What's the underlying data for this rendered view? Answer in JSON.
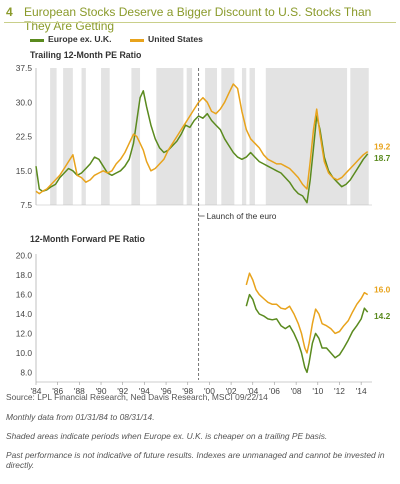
{
  "header": {
    "figure_number": "4",
    "title": "European Stocks Deserve a Bigger Discount to U.S. Stocks Than They Are Getting"
  },
  "colors": {
    "europe": "#5a8a1e",
    "us": "#e8a31c",
    "shade": "#e3e3e3",
    "accent": "#8a9a2a"
  },
  "chart_data": [
    {
      "type": "line",
      "title": "Trailing 12-Month PE Ratio",
      "ylim": [
        7.5,
        37.5
      ],
      "yticks": [
        "37.5",
        "30.0",
        "22.5",
        "15.0",
        "7.5"
      ],
      "shaded_periods": [
        [
          1985.3,
          1985.9
        ],
        [
          1986.5,
          1987.4
        ],
        [
          1988.2,
          1988.6
        ],
        [
          1990.0,
          1990.8
        ],
        [
          1992.8,
          1993.6
        ],
        [
          1995.1,
          1997.6
        ],
        [
          1997.9,
          1998.4
        ],
        [
          1999.6,
          2000.7
        ],
        [
          2001.1,
          2002.3
        ],
        [
          2003.0,
          2003.4
        ],
        [
          2003.7,
          2004.2
        ],
        [
          2005.2,
          2012.7
        ],
        [
          2013.0,
          2014.7
        ]
      ],
      "series": [
        {
          "name": "Europe ex. U.K.",
          "end_label": "18.7",
          "x": [
            1984.0,
            1984.3,
            1984.6,
            1985.0,
            1985.4,
            1985.8,
            1986.2,
            1986.6,
            1987.0,
            1987.4,
            1987.8,
            1988.2,
            1988.6,
            1989.0,
            1989.4,
            1989.8,
            1990.2,
            1990.6,
            1991.0,
            1991.4,
            1991.8,
            1992.2,
            1992.6,
            1993.0,
            1993.3,
            1993.6,
            1993.9,
            1994.2,
            1994.6,
            1995.0,
            1995.4,
            1995.8,
            1996.2,
            1996.6,
            1997.0,
            1997.4,
            1997.8,
            1998.2,
            1998.6,
            1999.0,
            1999.4,
            1999.8,
            2000.2,
            2000.6,
            2001.0,
            2001.4,
            2001.8,
            2002.2,
            2002.6,
            2003.0,
            2003.4,
            2003.8,
            2004.2,
            2004.6,
            2005.0,
            2005.4,
            2005.8,
            2006.2,
            2006.6,
            2007.0,
            2007.4,
            2007.8,
            2008.2,
            2008.6,
            2009.0,
            2009.3,
            2009.6,
            2009.9,
            2010.2,
            2010.6,
            2011.0,
            2011.4,
            2011.8,
            2012.2,
            2012.6,
            2013.0,
            2013.4,
            2013.8,
            2014.2,
            2014.6
          ],
          "values": [
            16,
            11,
            10.5,
            10.8,
            11.5,
            12,
            13.5,
            14.5,
            15.5,
            15,
            14,
            14.5,
            15.5,
            16.5,
            18,
            17.5,
            16,
            14.5,
            14,
            14.5,
            15,
            16,
            17.5,
            21,
            26,
            31,
            32.5,
            29,
            25,
            22,
            20,
            19,
            19.5,
            20.5,
            21.5,
            23,
            25,
            24.5,
            26,
            27,
            26.5,
            27.5,
            26,
            25,
            24,
            22,
            20.5,
            19,
            18,
            17.5,
            18,
            19,
            18,
            17,
            16.5,
            16,
            15.5,
            15,
            14.5,
            13.5,
            12.5,
            11,
            10,
            9.5,
            8,
            13,
            20,
            27,
            24,
            18,
            15,
            13.5,
            12.5,
            11.5,
            12,
            13,
            14.5,
            16,
            17.5,
            18.7
          ]
        },
        {
          "name": "United States",
          "end_label": "19.2",
          "x": [
            1984.0,
            1984.3,
            1984.6,
            1985.0,
            1985.4,
            1985.8,
            1986.2,
            1986.6,
            1987.0,
            1987.4,
            1987.8,
            1988.2,
            1988.6,
            1989.0,
            1989.4,
            1989.8,
            1990.2,
            1990.6,
            1991.0,
            1991.4,
            1991.8,
            1992.2,
            1992.6,
            1993.0,
            1993.3,
            1993.6,
            1993.9,
            1994.2,
            1994.6,
            1995.0,
            1995.4,
            1995.8,
            1996.2,
            1996.6,
            1997.0,
            1997.4,
            1997.8,
            1998.2,
            1998.6,
            1999.0,
            1999.4,
            1999.8,
            2000.2,
            2000.6,
            2001.0,
            2001.4,
            2001.8,
            2002.2,
            2002.6,
            2003.0,
            2003.4,
            2003.8,
            2004.2,
            2004.6,
            2005.0,
            2005.4,
            2005.8,
            2006.2,
            2006.6,
            2007.0,
            2007.4,
            2007.8,
            2008.2,
            2008.6,
            2009.0,
            2009.3,
            2009.6,
            2009.9,
            2010.2,
            2010.6,
            2011.0,
            2011.4,
            2011.8,
            2012.2,
            2012.6,
            2013.0,
            2013.4,
            2013.8,
            2014.2,
            2014.6
          ],
          "values": [
            10.5,
            10,
            10.5,
            11,
            12,
            13,
            14,
            15.5,
            17,
            18.5,
            14,
            13.5,
            12.5,
            13,
            14,
            14.5,
            15,
            14.5,
            15,
            16.5,
            17.5,
            19,
            21,
            23,
            22.5,
            21,
            19.5,
            17,
            15,
            15.5,
            16.5,
            17.5,
            19.5,
            21,
            22.5,
            24,
            25.5,
            27,
            28.5,
            30,
            31,
            30,
            28,
            27.5,
            28.5,
            30,
            32,
            34,
            33,
            28,
            24,
            22,
            21,
            20,
            18.5,
            17.5,
            17,
            16.5,
            16.5,
            16,
            15.5,
            14.5,
            13.5,
            12,
            11,
            17,
            24,
            28.5,
            23,
            17,
            14.5,
            13.5,
            13,
            13.5,
            14.5,
            15.5,
            16.5,
            17.5,
            18.5,
            19.2
          ]
        }
      ],
      "annotation": "Launch of the euro",
      "annotation_x": 1999.0
    },
    {
      "type": "line",
      "title": "12-Month Forward PE Ratio",
      "ylim": [
        7.0,
        21.0
      ],
      "yticks": [
        "20.0",
        "18.0",
        "16.0",
        "14.0",
        "12.0",
        "10.0",
        "8.0"
      ],
      "xticks": [
        "'84",
        "'86",
        "'88",
        "'90",
        "'92",
        "'94",
        "'96",
        "'98",
        "'00",
        "'02",
        "'04",
        "'06",
        "'08",
        "'10",
        "'12",
        "'14"
      ],
      "xlim": [
        1984,
        2015
      ],
      "series": [
        {
          "name": "Europe ex. U.K.",
          "end_label": "14.2",
          "x": [
            2003.4,
            2003.7,
            2004.0,
            2004.3,
            2004.6,
            2005.0,
            2005.4,
            2005.8,
            2006.2,
            2006.6,
            2007.0,
            2007.4,
            2007.8,
            2008.2,
            2008.5,
            2008.8,
            2009.0,
            2009.2,
            2009.5,
            2009.8,
            2010.1,
            2010.4,
            2010.8,
            2011.2,
            2011.6,
            2012.0,
            2012.4,
            2012.8,
            2013.2,
            2013.6,
            2014.0,
            2014.3,
            2014.6
          ],
          "values": [
            14.8,
            16,
            15.5,
            14.5,
            14,
            13.8,
            13.5,
            13.4,
            13.5,
            12.8,
            12.5,
            12.8,
            12,
            11,
            10,
            8.5,
            8,
            9,
            11,
            12,
            11.5,
            10.5,
            10.5,
            10,
            9.5,
            9.8,
            10.5,
            11.3,
            12.2,
            12.8,
            13.5,
            14.6,
            14.2
          ]
        },
        {
          "name": "United States",
          "end_label": "16.0",
          "x": [
            2003.4,
            2003.7,
            2004.0,
            2004.3,
            2004.6,
            2005.0,
            2005.4,
            2005.8,
            2006.2,
            2006.6,
            2007.0,
            2007.4,
            2007.8,
            2008.2,
            2008.5,
            2008.8,
            2009.0,
            2009.2,
            2009.5,
            2009.8,
            2010.1,
            2010.4,
            2010.8,
            2011.2,
            2011.6,
            2012.0,
            2012.4,
            2012.8,
            2013.2,
            2013.6,
            2014.0,
            2014.3,
            2014.6
          ],
          "values": [
            17,
            18.2,
            17.5,
            16.5,
            16,
            15.6,
            15.2,
            15,
            15,
            14.6,
            14.5,
            14.8,
            14,
            13,
            12,
            10.5,
            10,
            11,
            13,
            14.5,
            14,
            13,
            12.8,
            12.5,
            12,
            12.2,
            12.8,
            13.3,
            14.2,
            15,
            15.6,
            16.2,
            16.0
          ]
        }
      ]
    }
  ],
  "legend": {
    "europe": "Europe ex. U.K.",
    "us": "United States"
  },
  "footer": {
    "source": "Source: LPL Financial Research, Ned Davis Research, MSCI  09/22/14",
    "monthly": "Monthly data from 01/31/84 to 08/31/14.",
    "shaded": "Shaded areas indicate periods when Europe ex. U.K. is cheaper on a trailing PE basis.",
    "disclaimer": "Past performance is not indicative of future results. Indexes are unmanaged and cannot be invested in directly."
  }
}
